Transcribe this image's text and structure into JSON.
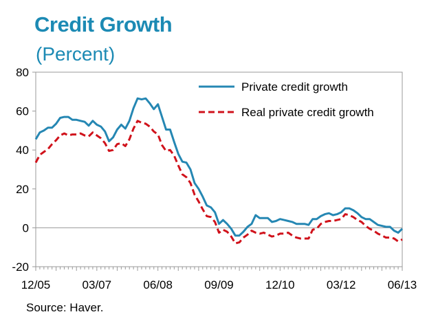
{
  "title": "Credit Growth",
  "subtitle": "(Percent)",
  "source": "Source: Haver.",
  "colors": {
    "title": "#1c8ab4",
    "private": "#2587b3",
    "real": "#d0121b"
  },
  "chart_data": {
    "type": "line",
    "title": "Credit Growth",
    "ylabel": "(Percent)",
    "ylim": [
      -20,
      80
    ],
    "yticks": [
      -20,
      0,
      20,
      40,
      60,
      80
    ],
    "xlim": [
      0,
      90
    ],
    "xtick_labels": [
      "12/05",
      "03/07",
      "06/08",
      "09/09",
      "12/10",
      "03/12",
      "06/13"
    ],
    "grid": false,
    "legend_position": "top-right",
    "series": [
      {
        "name": "Private credit growth",
        "style": "solid",
        "values": [
          45.5,
          49,
          50,
          51.5,
          51.5,
          53.5,
          56.5,
          57,
          57,
          55.5,
          55.5,
          55,
          54.5,
          52.5,
          55,
          53,
          52,
          49.5,
          44.5,
          46.5,
          50.5,
          53,
          51,
          55,
          61.5,
          66.5,
          66,
          66.5,
          64,
          61,
          63.5,
          57,
          50.5,
          50.5,
          44,
          38,
          34,
          33.5,
          30,
          23,
          20,
          16,
          11.5,
          10.5,
          8,
          2,
          4,
          2,
          -0.5,
          -4,
          -4,
          -2,
          0.5,
          2,
          6.5,
          5,
          5,
          5,
          3,
          3.5,
          4.5,
          4,
          3.5,
          3,
          2,
          2,
          2,
          1.5,
          4.5,
          4.5,
          6,
          7,
          7.5,
          6.5,
          7,
          8,
          10,
          10,
          9,
          7.5,
          5.5,
          4.5,
          4.5,
          3,
          1.5,
          1,
          0.5,
          0.5,
          -1.5,
          -2.5,
          -0.5
        ]
      },
      {
        "name": "Real private credit growth",
        "style": "dashed",
        "values": [
          33.5,
          37.5,
          39,
          40.5,
          43,
          45,
          47.5,
          48.5,
          47.5,
          48,
          48,
          48.5,
          47.5,
          47,
          49,
          47.5,
          46,
          43.5,
          39.5,
          40,
          43,
          43.5,
          42,
          45.5,
          51,
          55,
          54,
          53.5,
          52,
          49.5,
          48,
          42.5,
          39.5,
          40,
          37,
          32,
          27.5,
          26,
          23,
          17,
          13.5,
          9.5,
          6,
          5.5,
          3,
          -2.5,
          -1,
          -2,
          -4.5,
          -8,
          -7.5,
          -5,
          -3.5,
          -1.5,
          -2.5,
          -3,
          -2.5,
          -3.5,
          -4.5,
          -4,
          -3,
          -3,
          -2.5,
          -4,
          -5,
          -5.5,
          -5.5,
          -5.5,
          -1,
          -0.5,
          2,
          3,
          3.5,
          3.5,
          4,
          4.5,
          7,
          6.5,
          5.5,
          4,
          3,
          1,
          -0.5,
          -1.5,
          -3,
          -4,
          -5,
          -5,
          -5.5,
          -7,
          -6
        ]
      }
    ]
  }
}
